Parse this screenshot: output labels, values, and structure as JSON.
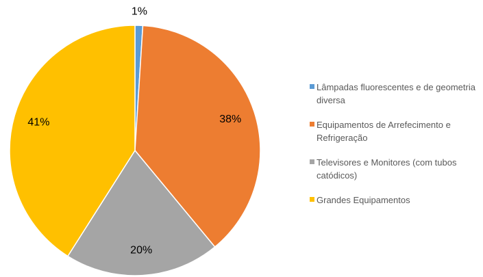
{
  "chart_data": {
    "type": "pie",
    "categories": [
      "Lâmpadas fluorescentes e de geometria diversa",
      "Equipamentos de Arrefecimento e Refrigeração",
      "Televisores e Monitores (com tubos catódicos)",
      "Grandes Equipamentos"
    ],
    "values": [
      1,
      38,
      20,
      41
    ],
    "value_labels": [
      "1%",
      "38%",
      "20%",
      "41%"
    ],
    "colors": [
      "#5b9bd5",
      "#ed7d31",
      "#a5a5a5",
      "#ffc000"
    ],
    "legend": "right"
  }
}
